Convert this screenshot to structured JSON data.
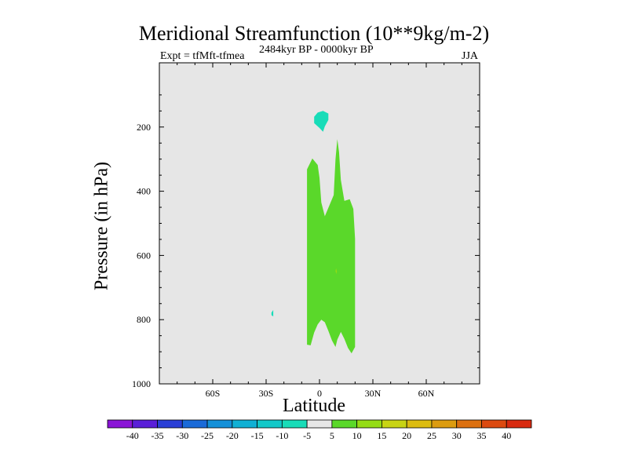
{
  "chart_data": {
    "type": "contour",
    "title": "Meridional Streamfunction (10**9kg/m-2)",
    "subtitle_left": "Expt = tfMft-tfmea",
    "subtitle_center": "2484kyr BP - 0000kyr BP",
    "subtitle_right": "JJA",
    "xlabel": "Latitude",
    "ylabel": "Pressure (in hPa)",
    "xlim": [
      -90,
      90
    ],
    "ylim": [
      1000,
      0
    ],
    "x_ticks": [
      {
        "value": -60,
        "label": "60S"
      },
      {
        "value": -30,
        "label": "30S"
      },
      {
        "value": 0,
        "label": "0"
      },
      {
        "value": 30,
        "label": "30N"
      },
      {
        "value": 60,
        "label": "60N"
      }
    ],
    "y_ticks": [
      200,
      400,
      600,
      800,
      1000
    ],
    "background_color": "#e6e6e6",
    "colorbar": {
      "levels": [
        "-40",
        "-35",
        "-30",
        "-25",
        "-20",
        "-15",
        "-10",
        "-5",
        "5",
        "10",
        "15",
        "20",
        "25",
        "30",
        "35",
        "40"
      ],
      "colors": [
        "#8a14d6",
        "#5a1fd8",
        "#2a3fd6",
        "#1a6ad8",
        "#1490d8",
        "#10b0d4",
        "#12c8c8",
        "#18dcb8",
        "#e6e6e6",
        "#5ad82a",
        "#94dc14",
        "#c8d414",
        "#dcbc10",
        "#dc9c10",
        "#dc7010",
        "#dc4a10",
        "#d82a10"
      ]
    },
    "regions": [
      {
        "name": "positive-5-to-10",
        "color": "#5ad82a",
        "points": [
          [
            -7,
            332
          ],
          [
            -4,
            298
          ],
          [
            -1,
            318
          ],
          [
            0,
            358
          ],
          [
            1,
            435
          ],
          [
            3,
            478
          ],
          [
            8,
            412
          ],
          [
            9,
            300
          ],
          [
            10,
            238
          ],
          [
            11,
            278
          ],
          [
            12,
            365
          ],
          [
            14,
            430
          ],
          [
            17,
            425
          ],
          [
            19,
            455
          ],
          [
            20,
            548
          ],
          [
            20,
            640
          ],
          [
            20,
            735
          ],
          [
            20,
            885
          ],
          [
            18,
            905
          ],
          [
            16,
            888
          ],
          [
            14,
            860
          ],
          [
            12,
            838
          ],
          [
            10,
            862
          ],
          [
            9,
            885
          ],
          [
            7,
            865
          ],
          [
            5,
            835
          ],
          [
            3,
            808
          ],
          [
            1,
            800
          ],
          [
            -1,
            815
          ],
          [
            -3,
            840
          ],
          [
            -5,
            880
          ],
          [
            -7,
            878
          ],
          [
            -7,
            700
          ],
          [
            -7,
            520
          ]
        ]
      },
      {
        "name": "negative-5-to-0-upper",
        "color": "#18dcb8",
        "points": [
          [
            -3,
            168
          ],
          [
            -1,
            155
          ],
          [
            2,
            150
          ],
          [
            5,
            158
          ],
          [
            5,
            178
          ],
          [
            3,
            198
          ],
          [
            2,
            215
          ],
          [
            0,
            203
          ],
          [
            -3,
            188
          ]
        ]
      },
      {
        "name": "negative-5-to-0-speck",
        "color": "#18dcb8",
        "points": [
          [
            -27,
            778
          ],
          [
            -26,
            770
          ],
          [
            -26,
            790
          ],
          [
            -27,
            786
          ]
        ]
      },
      {
        "name": "positive-10-speck",
        "color": "#94dc14",
        "points": [
          [
            9.3,
            640
          ],
          [
            9.8,
            650
          ],
          [
            9.4,
            658
          ],
          [
            9.0,
            648
          ]
        ]
      }
    ]
  }
}
